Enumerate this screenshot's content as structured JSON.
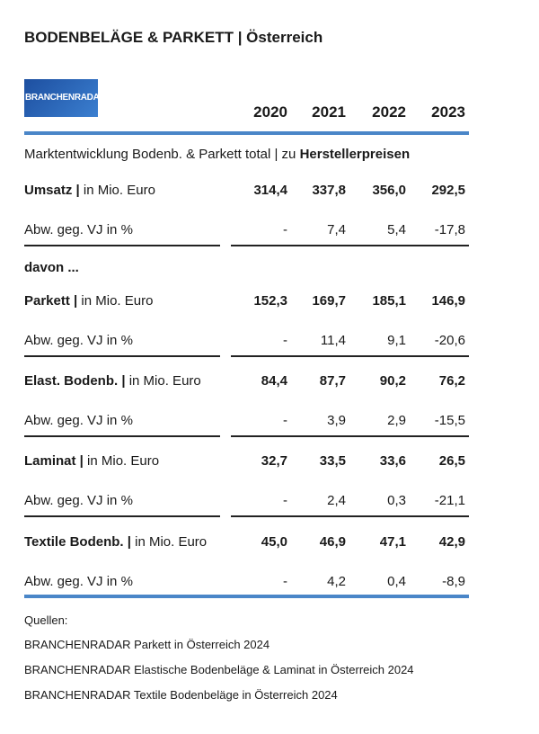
{
  "title": "BODENBELÄGE & PARKETT | Österreich",
  "logo": "BRANCHENRADAR",
  "years": [
    "2020",
    "2021",
    "2022",
    "2023"
  ],
  "subtitle": {
    "text": "Marktentwicklung Bodenb. & Parkett total | zu ",
    "bold": "Herstellerpreisen"
  },
  "davon": "davon ...",
  "groups": [
    {
      "label": {
        "bold": "Umsatz |",
        "text": " in Mio. Euro"
      },
      "values": [
        "314,4",
        "337,8",
        "356,0",
        "292,5"
      ],
      "change": {
        "label": "Abw. geg. VJ in %",
        "values": [
          "-",
          "7,4",
          "5,4",
          "-17,8"
        ]
      }
    },
    {
      "label": {
        "bold": "Parkett |",
        "text": " in Mio. Euro"
      },
      "values": [
        "152,3",
        "169,7",
        "185,1",
        "146,9"
      ],
      "change": {
        "label": "Abw. geg. VJ in %",
        "values": [
          "-",
          "11,4",
          "9,1",
          "-20,6"
        ]
      }
    },
    {
      "label": {
        "bold": "Elast. Bodenb. |",
        "text": " in Mio. Euro"
      },
      "values": [
        "84,4",
        "87,7",
        "90,2",
        "76,2"
      ],
      "change": {
        "label": "Abw. geg. VJ in %",
        "values": [
          "-",
          "3,9",
          "2,9",
          "-15,5"
        ]
      }
    },
    {
      "label": {
        "bold": "Laminat |",
        "text": " in Mio. Euro"
      },
      "values": [
        "32,7",
        "33,5",
        "33,6",
        "26,5"
      ],
      "change": {
        "label": "Abw. geg. VJ in %",
        "values": [
          "-",
          "2,4",
          "0,3",
          "-21,1"
        ]
      }
    },
    {
      "label": {
        "bold": "Textile Bodenb. |",
        "text": " in Mio. Euro"
      },
      "values": [
        "45,0",
        "46,9",
        "47,1",
        "42,9"
      ],
      "change": {
        "label": "Abw. geg. VJ in %",
        "values": [
          "-",
          "4,2",
          "0,4",
          "-8,9"
        ]
      }
    }
  ],
  "sources": {
    "heading": "Quellen:",
    "items": [
      "BRANCHENRADAR Parkett in Österreich 2024",
      "BRANCHENRADAR Elastische Bodenbeläge & Laminat in Österreich 2024",
      "BRANCHENRADAR Textile Bodenbeläge in Österreich 2024"
    ]
  }
}
